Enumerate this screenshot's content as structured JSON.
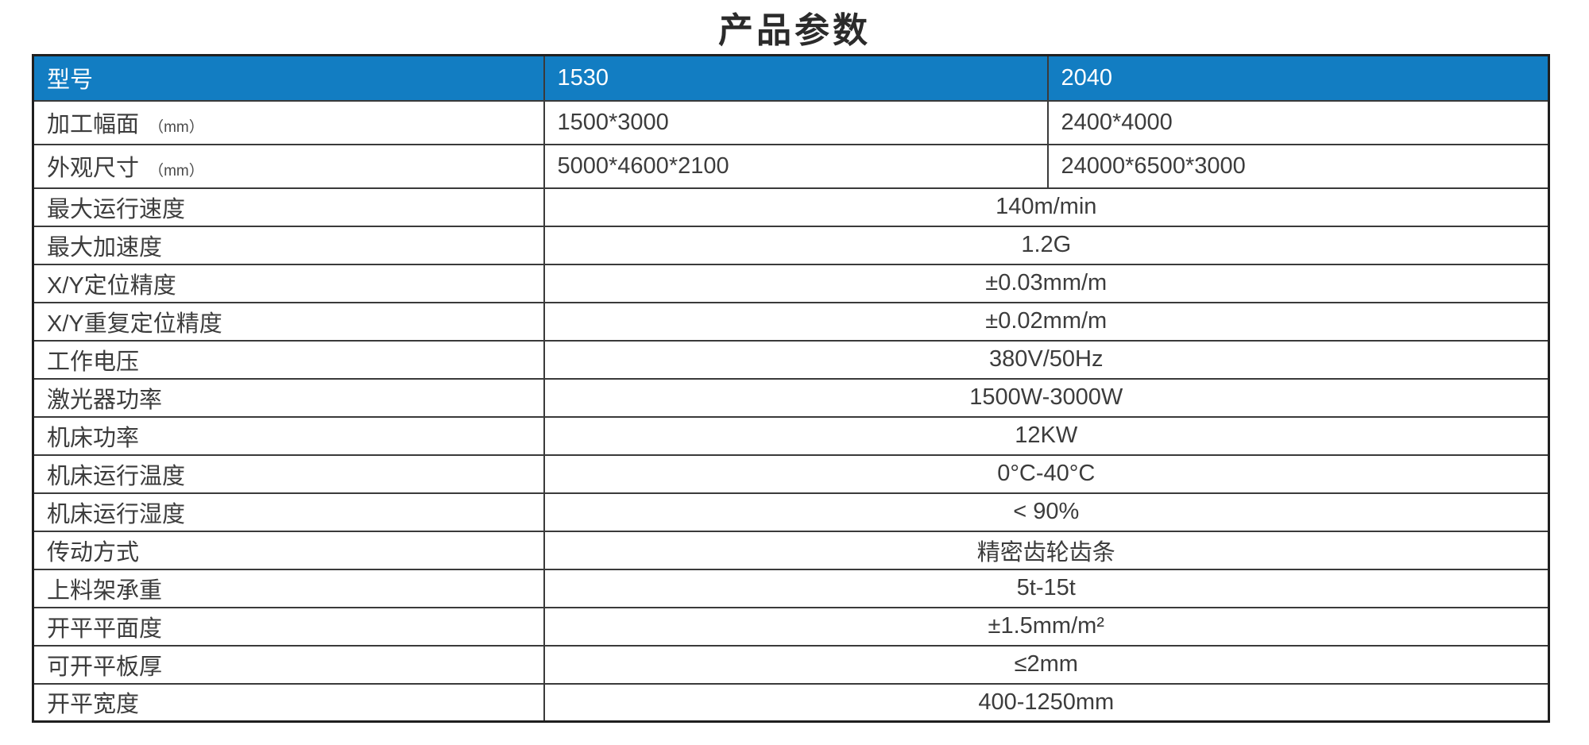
{
  "page": {
    "title": "产品参数"
  },
  "colors": {
    "header_bg": "#127DC2",
    "header_text": "#FFFFFF",
    "body_text": "#3C3C3C",
    "grid_border": "#3A3A3A",
    "outer_border": "#1F1F1F",
    "page_bg": "#FFFFFF"
  },
  "table": {
    "header": {
      "param_col": "型号",
      "model_a": "1530",
      "model_b": "2040"
    },
    "rows": [
      {
        "label": "加工幅面",
        "suffix": "（mm）",
        "value_a": "1500*3000",
        "value_b": "2400*4000"
      },
      {
        "label": "外观尺寸",
        "suffix": "（mm）",
        "value_a": "5000*4600*2100",
        "value_b": "24000*6500*3000"
      },
      {
        "label": "最大运行速度",
        "value": "140m/min"
      },
      {
        "label": "最大加速度",
        "value": "1.2G"
      },
      {
        "label": "X/Y定位精度",
        "value": "±0.03mm/m"
      },
      {
        "label": "X/Y重复定位精度",
        "value": "±0.02mm/m"
      },
      {
        "label": "工作电压",
        "value": "380V/50Hz"
      },
      {
        "label": "激光器功率",
        "value": "1500W-3000W"
      },
      {
        "label": "机床功率",
        "value": "12KW"
      },
      {
        "label": "机床运行温度",
        "value": "0°C-40°C"
      },
      {
        "label": "机床运行湿度",
        "value": "< 90%"
      },
      {
        "label": "传动方式",
        "value": "精密齿轮齿条"
      },
      {
        "label": "上料架承重",
        "value": "5t-15t"
      },
      {
        "label": "开平平面度",
        "value": "±1.5mm/m²"
      },
      {
        "label": "可开平板厚",
        "value": "≤2mm"
      },
      {
        "label": "开平宽度",
        "value": "400-1250mm"
      }
    ]
  }
}
